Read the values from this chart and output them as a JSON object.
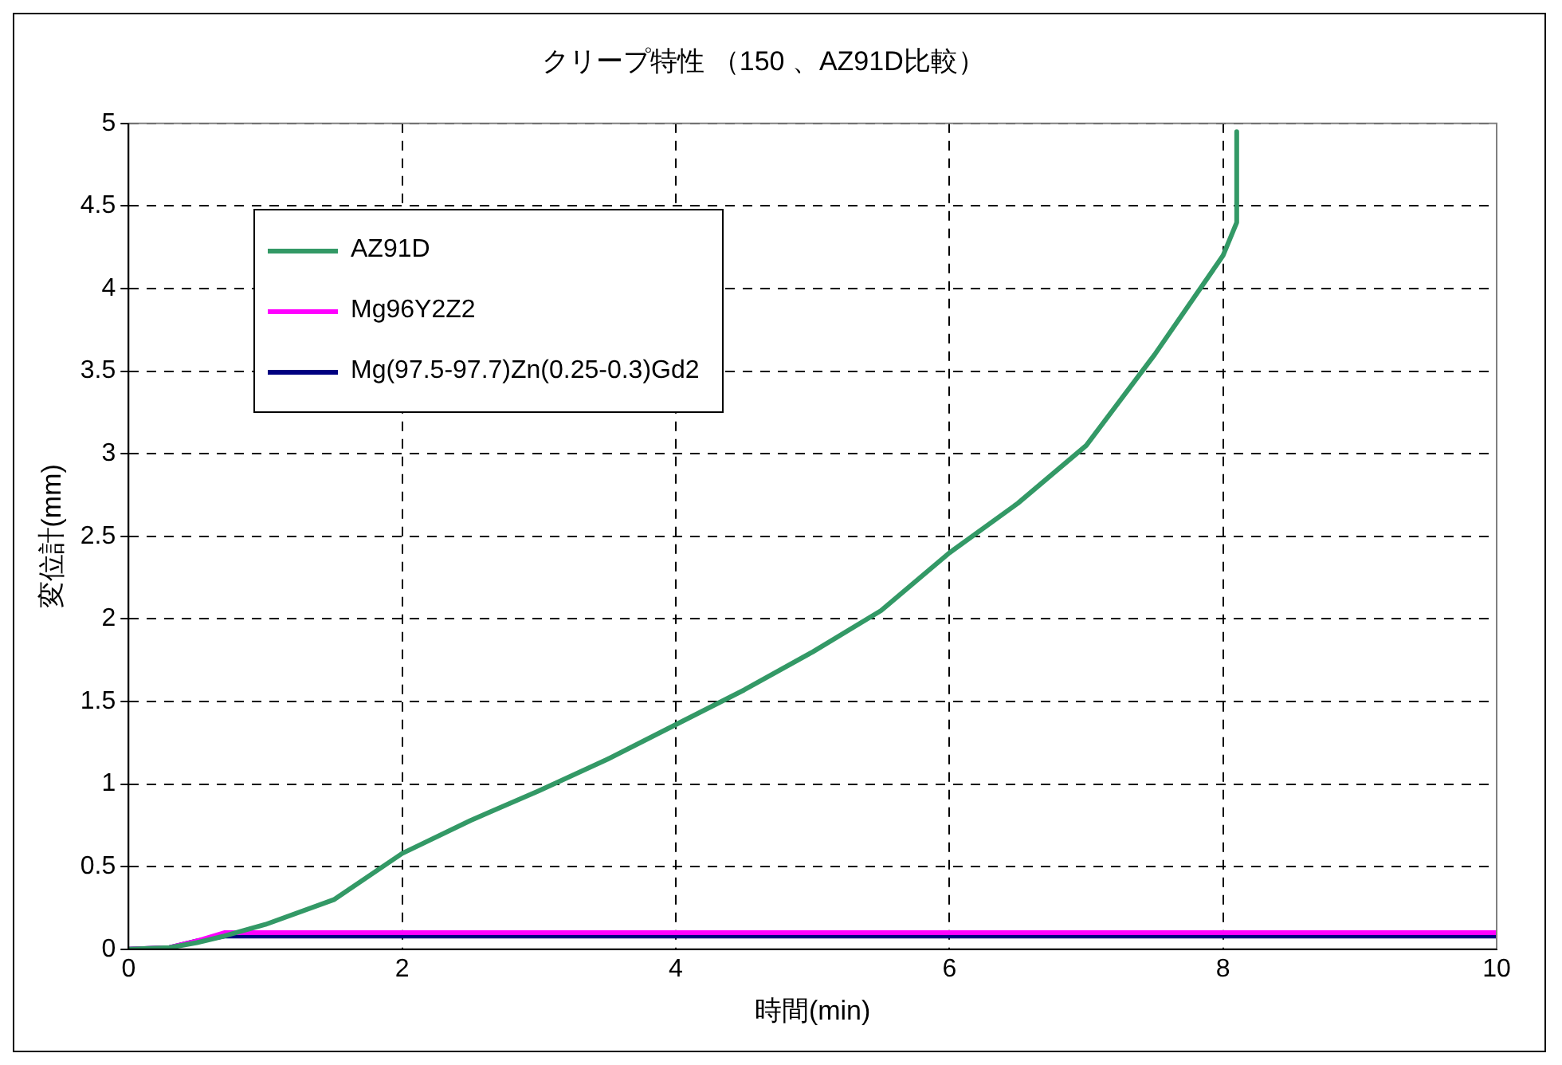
{
  "chart_data": {
    "type": "line",
    "title": "クリープ特性 （150 、AZ91D比較）",
    "xlabel": "時間(min)",
    "ylabel": "変位計(mm)",
    "xlim": [
      0,
      10
    ],
    "xticks": [
      0,
      2,
      4,
      6,
      8,
      10
    ],
    "ylim": [
      0,
      5
    ],
    "yticks": [
      0,
      0.5,
      1,
      1.5,
      2,
      2.5,
      3,
      3.5,
      4,
      4.5,
      5
    ],
    "grid": true,
    "legend": "top left",
    "marker": "none",
    "line_style": "solid",
    "series": [
      {
        "name": "AZ91D",
        "color": "#339966",
        "x": [
          0,
          0.3,
          0.5,
          0.7,
          1,
          1.5,
          2,
          2.5,
          3,
          3.5,
          4,
          4.5,
          5,
          5.5,
          6,
          6.5,
          7,
          7.5,
          8,
          8.1,
          8.1
        ],
        "values": [
          0,
          0.01,
          0.04,
          0.08,
          0.15,
          0.3,
          0.58,
          0.78,
          0.96,
          1.15,
          1.36,
          1.57,
          1.8,
          2.05,
          2.4,
          2.7,
          3.05,
          3.6,
          4.2,
          4.4,
          4.95
        ]
      },
      {
        "name": "Mg96Y2Z2",
        "color": "#ff00ff",
        "x": [
          0,
          0.3,
          0.5,
          0.7,
          1,
          10
        ],
        "values": [
          0,
          0.01,
          0.05,
          0.1,
          0.1,
          0.1
        ]
      },
      {
        "name": "Mg(97.5-97.7)Zn(0.25-0.3)Gd2",
        "color": "#000080",
        "x": [
          0,
          0.3,
          0.5,
          0.7,
          1,
          10
        ],
        "values": [
          0,
          0.01,
          0.05,
          0.08,
          0.08,
          0.08
        ]
      }
    ]
  }
}
